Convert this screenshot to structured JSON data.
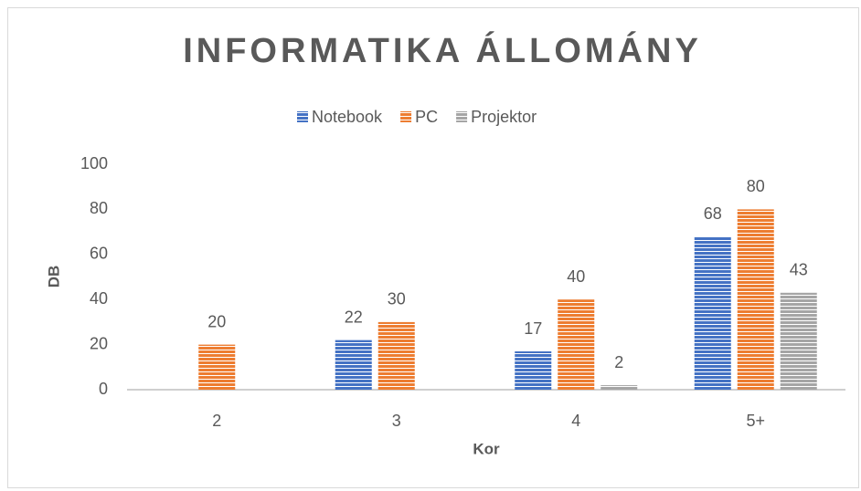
{
  "chart_data": {
    "type": "bar",
    "title": "INFORMATIKA ÁLLOMÁNY",
    "x_label": "Kor",
    "y_label": "DB",
    "categories": [
      "2",
      "3",
      "4",
      "5+"
    ],
    "series": [
      {
        "name": "Notebook",
        "color": "#4472c4",
        "values": [
          null,
          22,
          17,
          68
        ]
      },
      {
        "name": "PC",
        "color": "#ed7d31",
        "values": [
          20,
          30,
          40,
          80
        ]
      },
      {
        "name": "Projektor",
        "color": "#a5a5a5",
        "values": [
          null,
          null,
          2,
          43
        ]
      }
    ],
    "ylim": [
      0,
      100
    ],
    "yticks": [
      0,
      20,
      40,
      60,
      80,
      100
    ],
    "grid": false,
    "legend": "top"
  }
}
